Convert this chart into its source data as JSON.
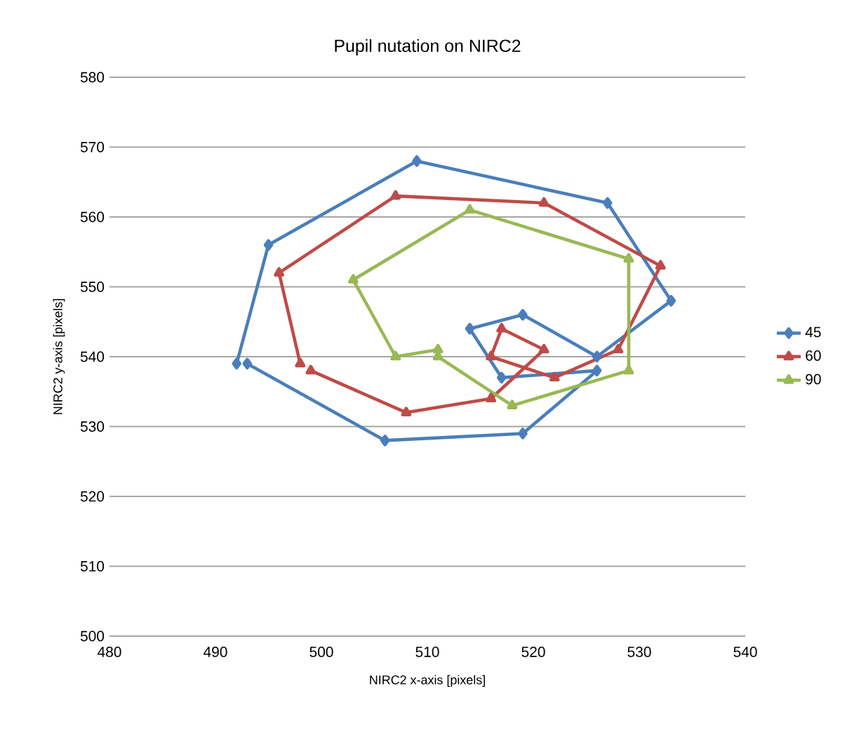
{
  "chart_data": {
    "type": "line",
    "title": "Pupil nutation on NIRC2",
    "xlabel": "NIRC2 x-axis [pixels]",
    "ylabel": "NIRC2 y-axis [pixels]",
    "xlim": [
      480,
      540
    ],
    "xticks": [
      480,
      490,
      500,
      510,
      520,
      530,
      540
    ],
    "ylim": [
      500,
      580
    ],
    "yticks": [
      500,
      510,
      520,
      530,
      540,
      550,
      560,
      570,
      580
    ],
    "grid": "y",
    "legend": "right",
    "series": [
      {
        "name": "45",
        "color": "#4a7ebb",
        "marker": "diamond",
        "x": [
          492,
          495,
          509,
          527,
          533,
          526,
          519,
          514,
          517,
          526,
          519,
          506,
          493
        ],
        "values": [
          539,
          556,
          568,
          562,
          548,
          540,
          546,
          544,
          537,
          538,
          529,
          528,
          539
        ]
      },
      {
        "name": "60",
        "color": "#be4b48",
        "marker": "triangle",
        "x": [
          498,
          496,
          507,
          521,
          532,
          528,
          522,
          516,
          517,
          521,
          516,
          508,
          499
        ],
        "values": [
          539,
          552,
          563,
          562,
          553,
          541,
          537,
          540,
          544,
          541,
          534,
          532,
          538
        ]
      },
      {
        "name": "90",
        "color": "#98b954",
        "marker": "triangle",
        "x": [
          511,
          507,
          503,
          514,
          529,
          529,
          518,
          511
        ],
        "values": [
          541,
          540,
          551,
          561,
          554,
          538,
          533,
          540
        ]
      }
    ]
  }
}
